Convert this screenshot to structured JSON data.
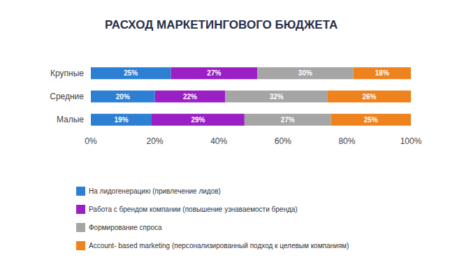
{
  "chart_data": {
    "type": "bar",
    "title": "РАСХОД МАРКЕТИНГОВОГО БЮДЖЕТА",
    "orientation": "horizontal",
    "stacked": true,
    "data_labels": true,
    "grid": false,
    "legend": "bottom-left",
    "categories": [
      "Крупные",
      "Средние",
      "Малые"
    ],
    "series": [
      {
        "name": "На лидогенерацию (привлечение лидов)",
        "color": "#2d7fd3",
        "values": [
          25,
          20,
          19
        ],
        "value_labels": [
          "25%",
          "20%",
          "19%"
        ]
      },
      {
        "name": "Работа с брендом компании (повышение узнаваемости бренда)",
        "color": "#9a1fc4",
        "values": [
          27,
          22,
          29
        ],
        "value_labels": [
          "27%",
          "22%",
          "29%"
        ]
      },
      {
        "name": "Формирование спроса",
        "color": "#a5a5a5",
        "values": [
          30,
          32,
          27
        ],
        "value_labels": [
          "30%",
          "32%",
          "27%"
        ]
      },
      {
        "name": "Account- based marketing (персонализированный подход к целевым компаниям)",
        "color": "#ee821c",
        "values": [
          18,
          26,
          25
        ],
        "value_labels": [
          "18%",
          "26%",
          "25%"
        ]
      }
    ],
    "xlim": [
      0,
      100
    ],
    "xticks": [
      {
        "value": 0,
        "label": "0%"
      },
      {
        "value": 20,
        "label": "20%"
      },
      {
        "value": 40,
        "label": "40%"
      },
      {
        "value": 60,
        "label": "60%"
      },
      {
        "value": 80,
        "label": "80%"
      },
      {
        "value": 100,
        "label": "100%"
      }
    ]
  }
}
